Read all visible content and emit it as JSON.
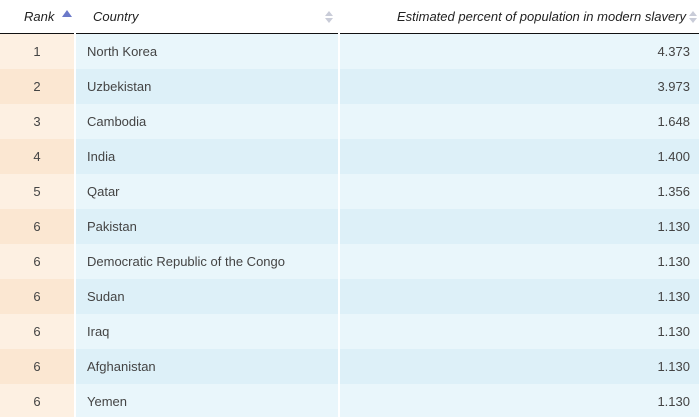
{
  "table": {
    "headers": {
      "rank": "Rank",
      "country": "Country",
      "percent": "Estimated percent of population in modern slavery"
    },
    "sort": {
      "column": "rank",
      "direction": "ascending"
    },
    "rows": [
      {
        "rank": "1",
        "country": "North Korea",
        "percent": "4.373"
      },
      {
        "rank": "2",
        "country": "Uzbekistan",
        "percent": "3.973"
      },
      {
        "rank": "3",
        "country": "Cambodia",
        "percent": "1.648"
      },
      {
        "rank": "4",
        "country": "India",
        "percent": "1.400"
      },
      {
        "rank": "5",
        "country": "Qatar",
        "percent": "1.356"
      },
      {
        "rank": "6",
        "country": "Pakistan",
        "percent": "1.130"
      },
      {
        "rank": "6",
        "country": "Democratic Republic of the Congo",
        "percent": "1.130"
      },
      {
        "rank": "6",
        "country": "Sudan",
        "percent": "1.130"
      },
      {
        "rank": "6",
        "country": "Iraq",
        "percent": "1.130"
      },
      {
        "rank": "6",
        "country": "Afghanistan",
        "percent": "1.130"
      },
      {
        "rank": "6",
        "country": "Yemen",
        "percent": "1.130"
      }
    ]
  },
  "colors": {
    "sort_active": "#6b79c9",
    "sort_inactive": "#c9ccd8",
    "rank_cell_light": "#fdf0e2",
    "rank_cell_dark": "#fbe7d2",
    "data_cell_light": "#e9f6fb",
    "data_cell_dark": "#ddf0f8"
  },
  "icons": {
    "rank_sort": "sort-ascending-icon",
    "country_sort": "sort-both-icon",
    "percent_sort": "sort-both-icon"
  }
}
